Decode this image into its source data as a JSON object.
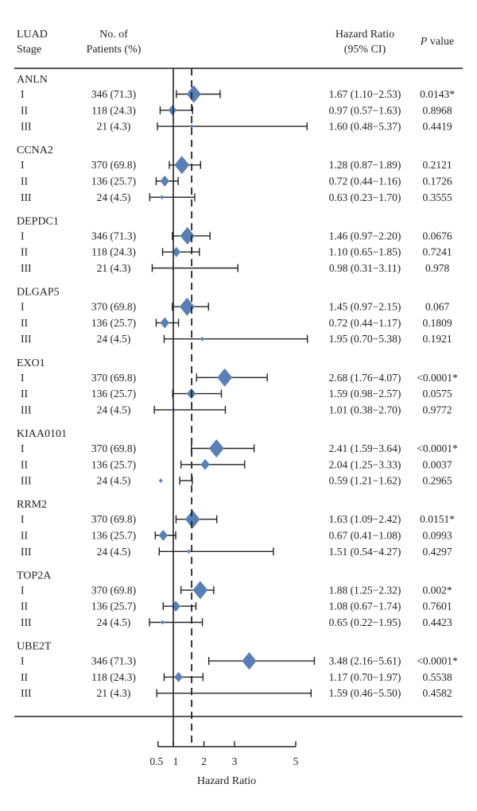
{
  "chart_data": {
    "type": "forest",
    "headers": {
      "stage": [
        "LUAD",
        "Stage"
      ],
      "patients": [
        "No. of",
        "Patients (%)"
      ],
      "hr": [
        "Hazard Ratio",
        "(95% CI)"
      ],
      "p_italic": "P",
      "p_rest": " value"
    },
    "xlabel": "Hazard Ratio",
    "xticks": [
      0.5,
      1,
      2,
      3,
      5
    ],
    "reference_lines": [
      1,
      1.6
    ],
    "marker_color": "#5a7fb5",
    "groups": [
      {
        "name": "ANLN",
        "rows": [
          {
            "stage": "I",
            "patients": "346 (71.3)",
            "hr": 1.67,
            "lo": 1.1,
            "hi": 2.53,
            "hr_text": "1.67 (1.10−2.53)",
            "p": "0.0143*"
          },
          {
            "stage": "II",
            "patients": "118 (24.3)",
            "hr": 0.97,
            "lo": 0.57,
            "hi": 1.63,
            "hr_text": "0.97 (0.57−1.63)",
            "p": "0.8968"
          },
          {
            "stage": "III",
            "patients": "21 (4.3)",
            "hr": 1.6,
            "lo": 0.48,
            "hi": 5.37,
            "hr_text": "1.60 (0.48−5.37)",
            "p": "0.4419"
          }
        ]
      },
      {
        "name": "CCNA2",
        "rows": [
          {
            "stage": "I",
            "patients": "370 (69.8)",
            "hr": 1.28,
            "lo": 0.87,
            "hi": 1.89,
            "hr_text": "1.28 (0.87−1.89)",
            "p": "0.2121"
          },
          {
            "stage": "II",
            "patients": "136 (25.7)",
            "hr": 0.72,
            "lo": 0.44,
            "hi": 1.16,
            "hr_text": "0.72 (0.44−1.16)",
            "p": "0.1726"
          },
          {
            "stage": "III",
            "patients": "24 (4.5)",
            "hr": 0.63,
            "lo": 0.23,
            "hi": 1.7,
            "hr_text": "0.63 (0.23−1.70)",
            "p": "0.3555"
          }
        ]
      },
      {
        "name": "DEPDC1",
        "rows": [
          {
            "stage": "I",
            "patients": "346 (71.3)",
            "hr": 1.46,
            "lo": 0.97,
            "hi": 2.2,
            "hr_text": "1.46 (0.97−2.20)",
            "p": "0.0676"
          },
          {
            "stage": "II",
            "patients": "118 (24.3)",
            "hr": 1.1,
            "lo": 0.65,
            "hi": 1.85,
            "hr_text": "1.10 (0.65−1.85)",
            "p": "0.7241"
          },
          {
            "stage": "III",
            "patients": "21 (4.3)",
            "hr": 0.98,
            "lo": 0.31,
            "hi": 3.11,
            "hr_text": "0.98 (0.31−3.11)",
            "p": "0.978"
          }
        ]
      },
      {
        "name": "DLGAP5",
        "rows": [
          {
            "stage": "I",
            "patients": "370 (69.8)",
            "hr": 1.45,
            "lo": 0.97,
            "hi": 2.15,
            "hr_text": "1.45 (0.97−2.15)",
            "p": "0.067"
          },
          {
            "stage": "II",
            "patients": "136 (25.7)",
            "hr": 0.72,
            "lo": 0.44,
            "hi": 1.17,
            "hr_text": "0.72 (0.44−1.17)",
            "p": "0.1809"
          },
          {
            "stage": "III",
            "patients": "24 (4.5)",
            "hr": 1.95,
            "lo": 0.7,
            "hi": 5.38,
            "hr_text": "1.95 (0.70−5.38)",
            "p": "0.1921"
          }
        ]
      },
      {
        "name": "EXO1",
        "rows": [
          {
            "stage": "I",
            "patients": "370 (69.8)",
            "hr": 2.68,
            "lo": 1.76,
            "hi": 4.07,
            "hr_text": "2.68 (1.76−4.07)",
            "p": "<0.0001*"
          },
          {
            "stage": "II",
            "patients": "136 (25.7)",
            "hr": 1.59,
            "lo": 0.98,
            "hi": 2.57,
            "hr_text": "1.59 (0.98−2.57)",
            "p": "0.0575"
          },
          {
            "stage": "III",
            "patients": "24 (4.5)",
            "hr": 1.01,
            "lo": 0.38,
            "hi": 2.7,
            "hr_text": "1.01 (0.38−2.70)",
            "p": "0.9772"
          }
        ]
      },
      {
        "name": "KIAA0101",
        "rows": [
          {
            "stage": "I",
            "patients": "370 (69.8)",
            "hr": 2.41,
            "lo": 1.59,
            "hi": 3.64,
            "hr_text": "2.41 (1.59−3.64)",
            "p": "<0.0001*"
          },
          {
            "stage": "II",
            "patients": "136 (25.7)",
            "hr": 2.04,
            "lo": 1.25,
            "hi": 3.33,
            "hr_text": "2.04 (1.25−3.33)",
            "p": "0.0037"
          },
          {
            "stage": "III",
            "patients": "24 (4.5)",
            "hr": 0.59,
            "lo": 1.21,
            "hi": 1.62,
            "hr_text": "0.59 (1.21−1.62)",
            "p": "0.2965"
          }
        ]
      },
      {
        "name": "RRM2",
        "rows": [
          {
            "stage": "I",
            "patients": "370 (69.8)",
            "hr": 1.63,
            "lo": 1.09,
            "hi": 2.42,
            "hr_text": "1.63 (1.09−2.42)",
            "p": "0.0151*"
          },
          {
            "stage": "II",
            "patients": "136 (25.7)",
            "hr": 0.67,
            "lo": 0.41,
            "hi": 1.08,
            "hr_text": "0.67 (0.41−1.08)",
            "p": "0.0993"
          },
          {
            "stage": "III",
            "patients": "24 (4.5)",
            "hr": 1.51,
            "lo": 0.54,
            "hi": 4.27,
            "hr_text": "1.51 (0.54−4.27)",
            "p": "0.4297"
          }
        ]
      },
      {
        "name": "TOP2A",
        "rows": [
          {
            "stage": "I",
            "patients": "370 (69.8)",
            "hr": 1.88,
            "lo": 1.25,
            "hi": 2.32,
            "hr_text": "1.88 (1.25−2.32)",
            "p": "0.002*"
          },
          {
            "stage": "II",
            "patients": "136 (25.7)",
            "hr": 1.08,
            "lo": 0.67,
            "hi": 1.74,
            "hr_text": "1.08 (0.67−1.74)",
            "p": "0.7601"
          },
          {
            "stage": "III",
            "patients": "24 (4.5)",
            "hr": 0.65,
            "lo": 0.22,
            "hi": 1.95,
            "hr_text": "0.65 (0.22−1.95)",
            "p": "0.4423"
          }
        ]
      },
      {
        "name": "UBE2T",
        "rows": [
          {
            "stage": "I",
            "patients": "346 (71.3)",
            "hr": 3.48,
            "lo": 2.16,
            "hi": 5.61,
            "hr_text": "3.48 (2.16−5.61)",
            "p": "<0.0001*"
          },
          {
            "stage": "II",
            "patients": "118 (24.3)",
            "hr": 1.17,
            "lo": 0.7,
            "hi": 1.97,
            "hr_text": "1.17 (0.70−1.97)",
            "p": "0.5538"
          },
          {
            "stage": "III",
            "patients": "21 (4.3)",
            "hr": 1.59,
            "lo": 0.46,
            "hi": 5.5,
            "hr_text": "1.59 (0.46−5.50)",
            "p": "0.4582"
          }
        ]
      }
    ]
  }
}
